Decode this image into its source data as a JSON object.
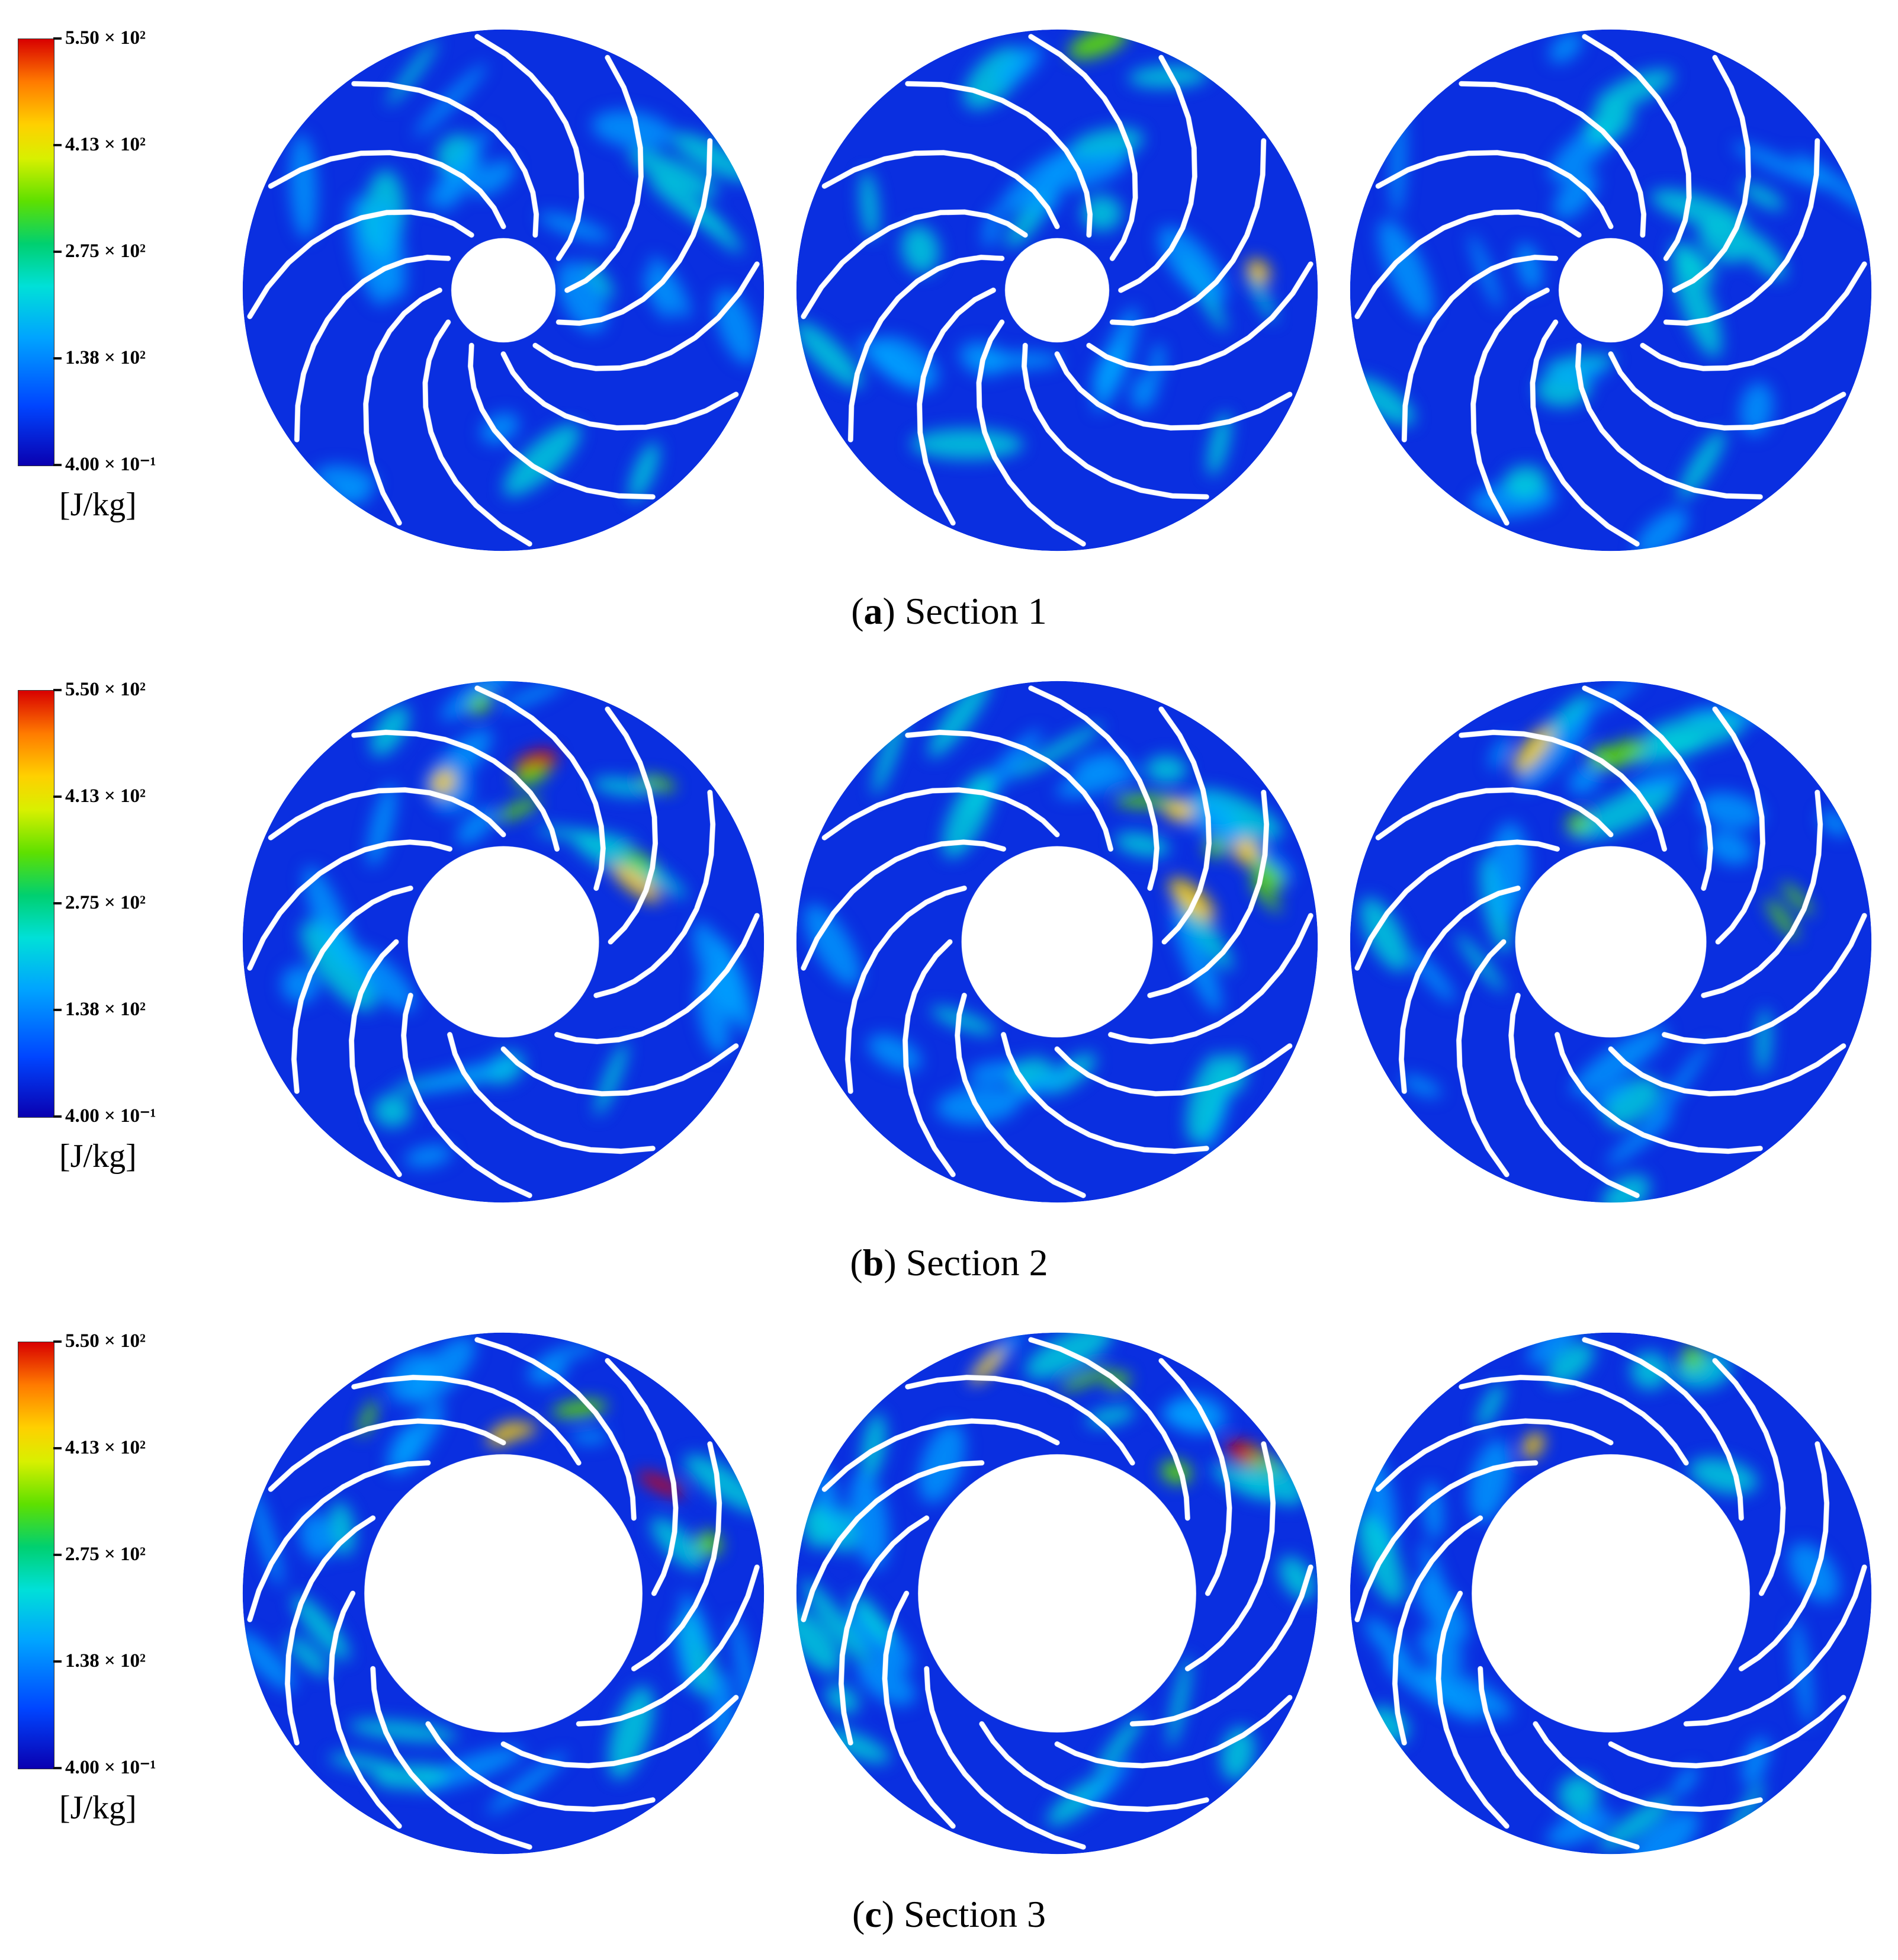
{
  "colorbar": {
    "labels": [
      "5.50 × 10²",
      "4.13 × 10²",
      "2.75 × 10²",
      "1.38 × 10²",
      "4.00 × 10⁻¹"
    ],
    "unit": "[J/kg]",
    "colors": [
      "#0a00b0",
      "#0045ff",
      "#00a4ff",
      "#00e0d8",
      "#00d070",
      "#5ee000",
      "#d8f000",
      "#ffd000",
      "#ff7a00",
      "#d80000"
    ]
  },
  "panels": [
    {
      "letter": "a",
      "title": "Section 1"
    },
    {
      "letter": "b",
      "title": "Section 2"
    },
    {
      "letter": "c",
      "title": "Section 3"
    }
  ]
}
